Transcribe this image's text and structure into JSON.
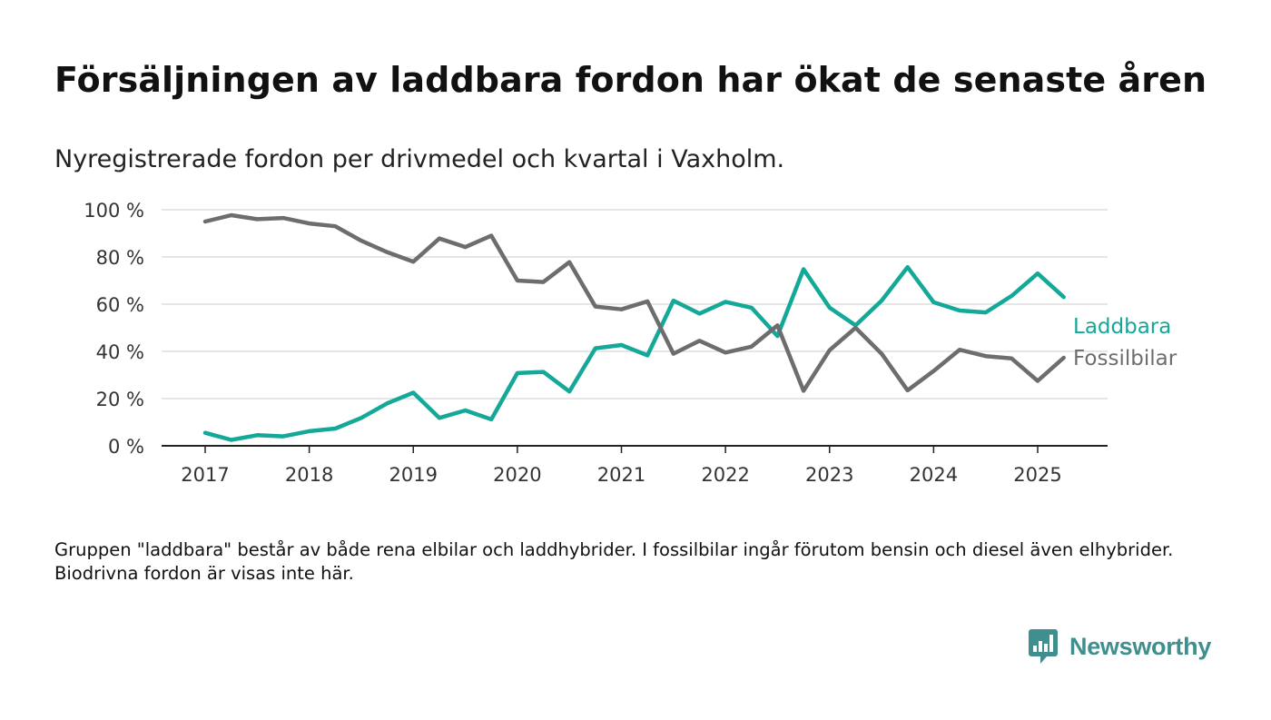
{
  "title": "Försäljningen av laddbara fordon har ökat de senaste åren",
  "subtitle": "Nyregistrerade fordon per drivmedel och kvartal i Vaxholm.",
  "note": "Gruppen \"laddbara\" består av både rena elbilar och laddhybrider. I fossilbilar ingår förutom bensin och diesel även elhybrider. Biodrivna fordon är visas inte här.",
  "logo": {
    "text": "Newsworthy",
    "icon": "bar-chart-speech-bubble-icon",
    "color": "#3f8f8f"
  },
  "chart_data": {
    "type": "line",
    "title": "Försäljningen av laddbara fordon har ökat de senaste åren",
    "subtitle": "Nyregistrerade fordon per drivmedel och kvartal i Vaxholm.",
    "xlabel": "",
    "ylabel": "",
    "x_ticks": [
      "2017",
      "2018",
      "2019",
      "2020",
      "2021",
      "2022",
      "2023",
      "2024",
      "2025"
    ],
    "y_ticks": [
      "0 %",
      "20 %",
      "40 %",
      "60 %",
      "80 %",
      "100 %"
    ],
    "ylim": [
      0,
      100
    ],
    "xlim": [
      2016.6,
      2025.7
    ],
    "grid": true,
    "legend": "direct labels at line ends (right)",
    "x": [
      2017.0,
      2017.25,
      2017.5,
      2017.75,
      2018.0,
      2018.25,
      2018.5,
      2018.75,
      2019.0,
      2019.25,
      2019.5,
      2019.75,
      2020.0,
      2020.25,
      2020.5,
      2020.75,
      2021.0,
      2021.25,
      2021.5,
      2021.75,
      2022.0,
      2022.25,
      2022.5,
      2022.75,
      2023.0,
      2023.25,
      2023.5,
      2023.75,
      2024.0,
      2024.25,
      2024.5,
      2024.75,
      2025.0,
      2025.25
    ],
    "series": [
      {
        "name": "Laddbara",
        "color": "#13a898",
        "values": [
          5.5,
          2.5,
          4.5,
          4.0,
          6.2,
          7.3,
          11.8,
          18.0,
          22.5,
          11.8,
          15.0,
          11.2,
          30.8,
          31.3,
          23.0,
          41.3,
          42.7,
          38.3,
          61.5,
          56.0,
          61.0,
          58.5,
          46.5,
          74.8,
          58.5,
          51.0,
          61.5,
          75.7,
          60.8,
          57.3,
          56.5,
          63.5,
          73.0,
          63.0
        ]
      },
      {
        "name": "Fossilbilar",
        "color": "#6d6d70",
        "values": [
          95.0,
          97.7,
          96.0,
          96.5,
          94.2,
          93.0,
          86.9,
          82.0,
          78.0,
          87.8,
          84.2,
          89.0,
          70.0,
          69.4,
          77.8,
          59.0,
          57.8,
          61.2,
          39.0,
          44.5,
          39.5,
          42.0,
          51.0,
          23.3,
          40.5,
          50.0,
          39.0,
          23.5,
          31.7,
          40.7,
          38.0,
          37.0,
          27.5,
          37.3
        ]
      }
    ]
  }
}
